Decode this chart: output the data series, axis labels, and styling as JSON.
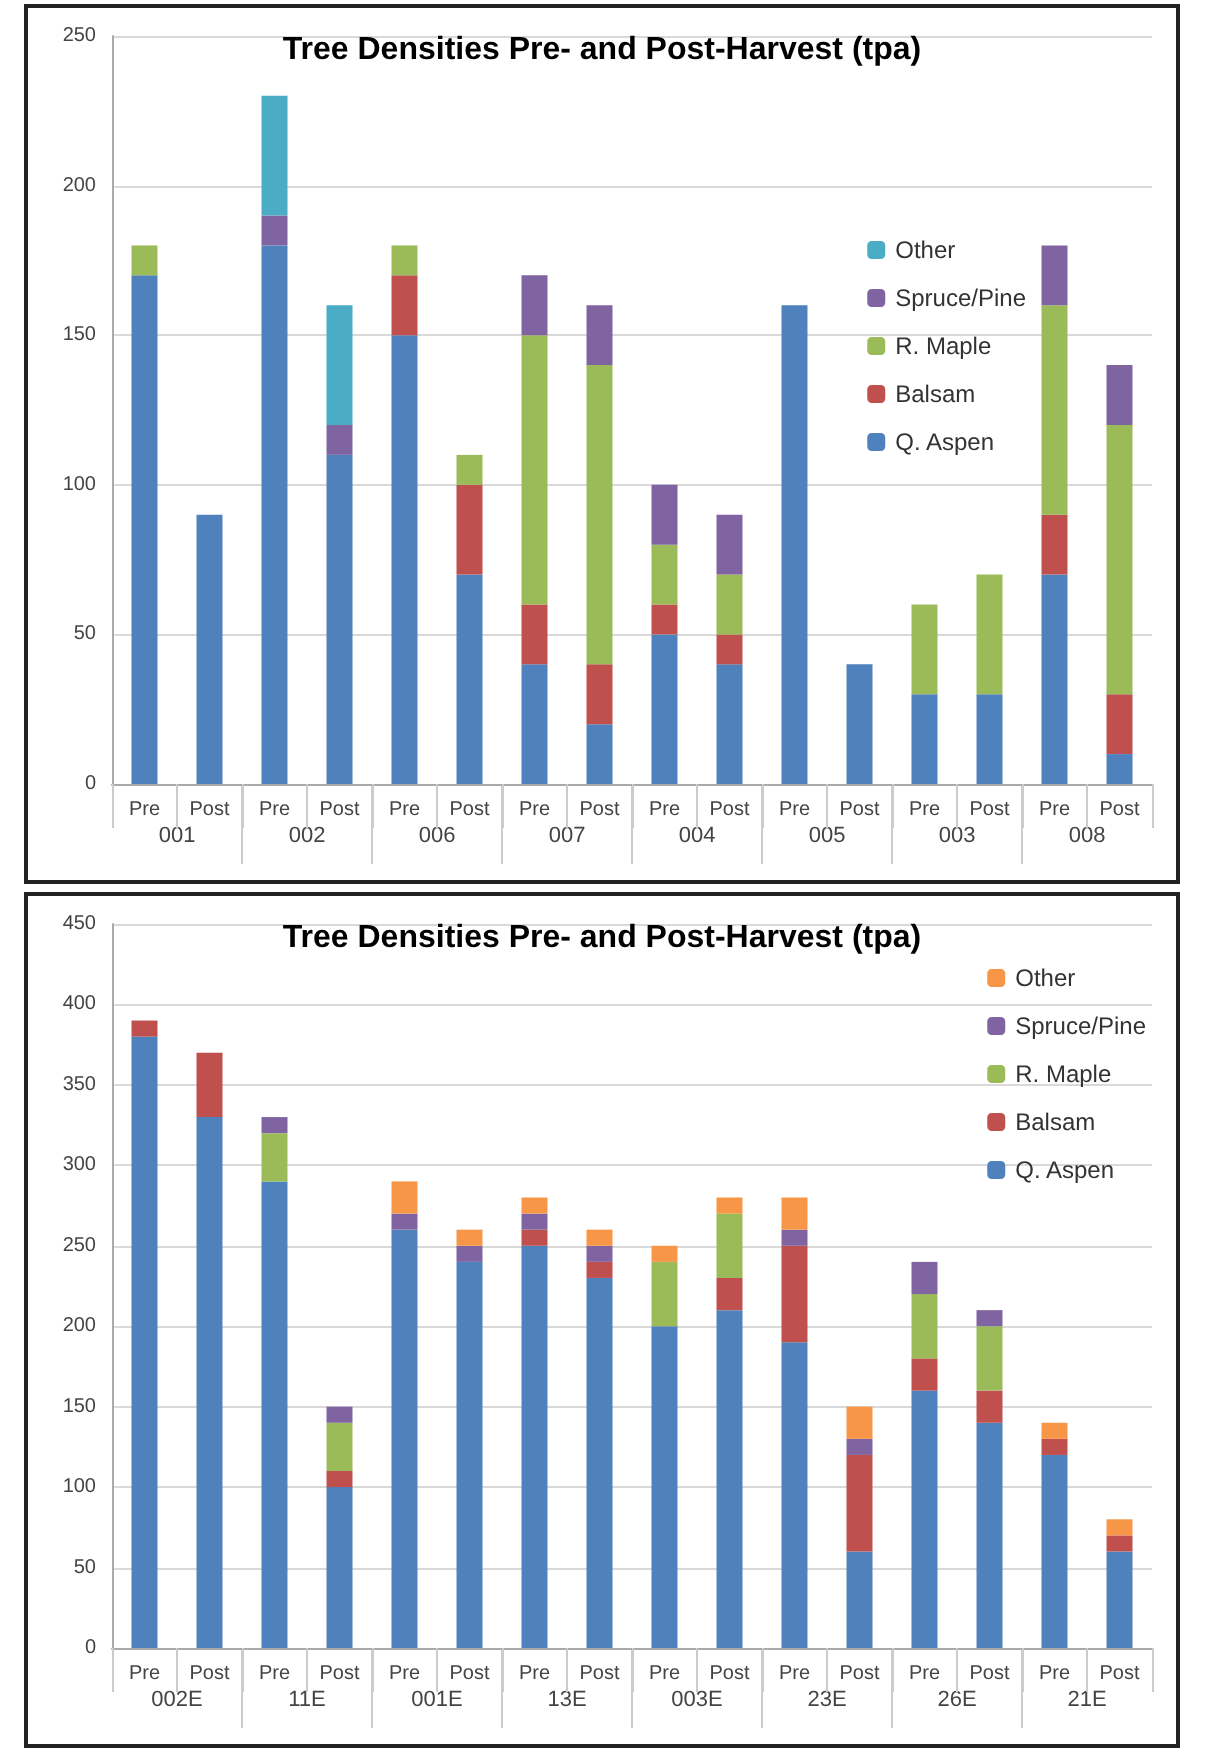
{
  "chart_data": [
    {
      "type": "bar",
      "title": "Tree Densities Pre- and Post-Harvest (tpa)",
      "stacked": true,
      "grid": "y",
      "legend": "right",
      "categories": [
        "Pre",
        "Post",
        "Pre",
        "Post",
        "Pre",
        "Post",
        "Pre",
        "Post",
        "Pre",
        "Post",
        "Pre",
        "Post",
        "Pre",
        "Post",
        "Pre",
        "Post"
      ],
      "annotations": [
        "001",
        "002",
        "006",
        "007",
        "004",
        "005",
        "003",
        "008"
      ],
      "ylim": [
        0,
        250
      ],
      "yticks": [
        0,
        50,
        100,
        150,
        200,
        250
      ],
      "series": [
        {
          "name": "Q. Aspen",
          "color": "#4f81bd",
          "values": [
            170,
            90,
            180,
            110,
            150,
            70,
            40,
            20,
            50,
            40,
            160,
            40,
            30,
            30,
            70,
            10
          ]
        },
        {
          "name": "Balsam",
          "color": "#c0504d",
          "values": [
            0,
            0,
            0,
            0,
            20,
            30,
            20,
            20,
            10,
            10,
            0,
            0,
            0,
            0,
            20,
            20
          ]
        },
        {
          "name": "R. Maple",
          "color": "#9bbb59",
          "values": [
            10,
            0,
            0,
            0,
            10,
            10,
            90,
            100,
            20,
            20,
            0,
            0,
            30,
            40,
            70,
            90
          ]
        },
        {
          "name": "Spruce/Pine",
          "color": "#8064a2",
          "values": [
            0,
            0,
            10,
            10,
            0,
            0,
            20,
            20,
            20,
            20,
            0,
            0,
            0,
            0,
            20,
            20
          ]
        },
        {
          "name": "Other",
          "color": "#4bacc6",
          "values": [
            0,
            0,
            40,
            40,
            0,
            0,
            0,
            0,
            0,
            0,
            0,
            0,
            0,
            0,
            0,
            0
          ]
        }
      ]
    },
    {
      "type": "bar",
      "title": "Tree Densities Pre- and Post-Harvest (tpa)",
      "stacked": true,
      "grid": "y",
      "legend": "top right",
      "categories": [
        "Pre",
        "Post",
        "Pre",
        "Post",
        "Pre",
        "Post",
        "Pre",
        "Post",
        "Pre",
        "Post",
        "Pre",
        "Post",
        "Pre",
        "Post",
        "Pre",
        "Post"
      ],
      "annotations": [
        "002E",
        "11E",
        "001E",
        "13E",
        "003E",
        "23E",
        "26E",
        "21E"
      ],
      "ylim": [
        0,
        450
      ],
      "yticks": [
        0,
        50,
        100,
        150,
        200,
        250,
        300,
        350,
        400,
        450
      ],
      "series": [
        {
          "name": "Q. Aspen",
          "color": "#4f81bd",
          "values": [
            380,
            330,
            290,
            100,
            260,
            240,
            250,
            230,
            200,
            210,
            190,
            60,
            160,
            140,
            120,
            60
          ]
        },
        {
          "name": "Balsam",
          "color": "#c0504d",
          "values": [
            10,
            40,
            0,
            10,
            0,
            0,
            10,
            10,
            0,
            20,
            60,
            60,
            20,
            20,
            10,
            10
          ]
        },
        {
          "name": "R. Maple",
          "color": "#9bbb59",
          "values": [
            0,
            0,
            30,
            30,
            0,
            0,
            0,
            0,
            40,
            40,
            0,
            0,
            40,
            40,
            0,
            0
          ]
        },
        {
          "name": "Spruce/Pine",
          "color": "#8064a2",
          "values": [
            0,
            0,
            10,
            10,
            10,
            10,
            10,
            10,
            0,
            0,
            10,
            10,
            20,
            10,
            0,
            0
          ]
        },
        {
          "name": "Other",
          "color": "#f79646",
          "values": [
            0,
            0,
            0,
            0,
            20,
            10,
            10,
            10,
            10,
            10,
            20,
            20,
            0,
            0,
            10,
            10
          ]
        }
      ]
    }
  ]
}
